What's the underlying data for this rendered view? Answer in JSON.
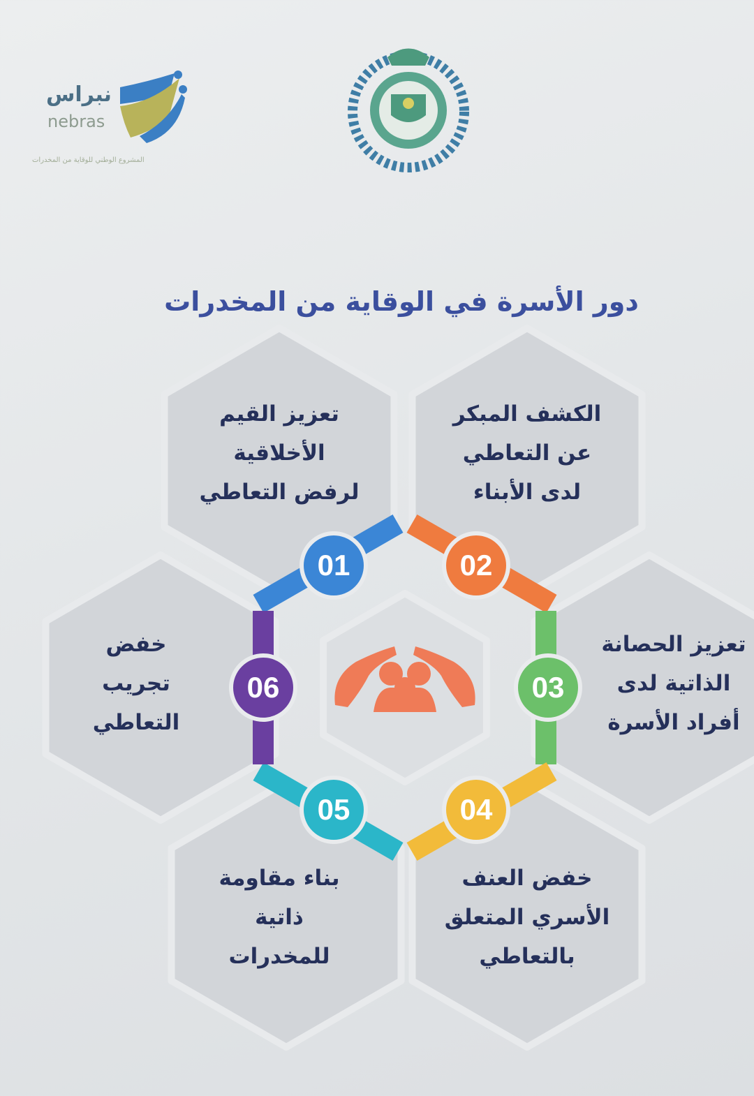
{
  "logo": {
    "name_ar": "نبراس",
    "name_en": "nebras",
    "subtitle": "المشروع الوطني للوقاية من المخدرات"
  },
  "title": "دور الأسرة في الوقاية من المخدرات",
  "items": [
    {
      "number": "01",
      "color": "#3b86d6",
      "lines": [
        "تعزيز القيم",
        "الأخلاقية",
        "لرفض التعاطي"
      ]
    },
    {
      "number": "02",
      "color": "#ef7b3f",
      "lines": [
        "الكشف المبكر",
        "عن التعاطي",
        "لدى الأبناء"
      ]
    },
    {
      "number": "03",
      "color": "#6cc06a",
      "lines": [
        "تعزيز الحصانة",
        "الذاتية لدى",
        "أفراد الأسرة"
      ]
    },
    {
      "number": "04",
      "color": "#f2bb3a",
      "lines": [
        "خفض العنف",
        "الأسري المتعلق",
        "بالتعاطي"
      ]
    },
    {
      "number": "05",
      "color": "#2bb6c9",
      "lines": [
        "بناء مقاومة",
        "ذاتية",
        "للمخدرات"
      ]
    },
    {
      "number": "06",
      "color": "#6a3fa0",
      "lines": [
        "خفض",
        "تجريب",
        "التعاطي"
      ]
    }
  ],
  "center_icon": "hands-protecting-family-icon",
  "colors": {
    "hex_fill": "#d2d5d9",
    "title": "#3b4f9e",
    "text": "#25305a",
    "icon": "#ef7b57"
  }
}
